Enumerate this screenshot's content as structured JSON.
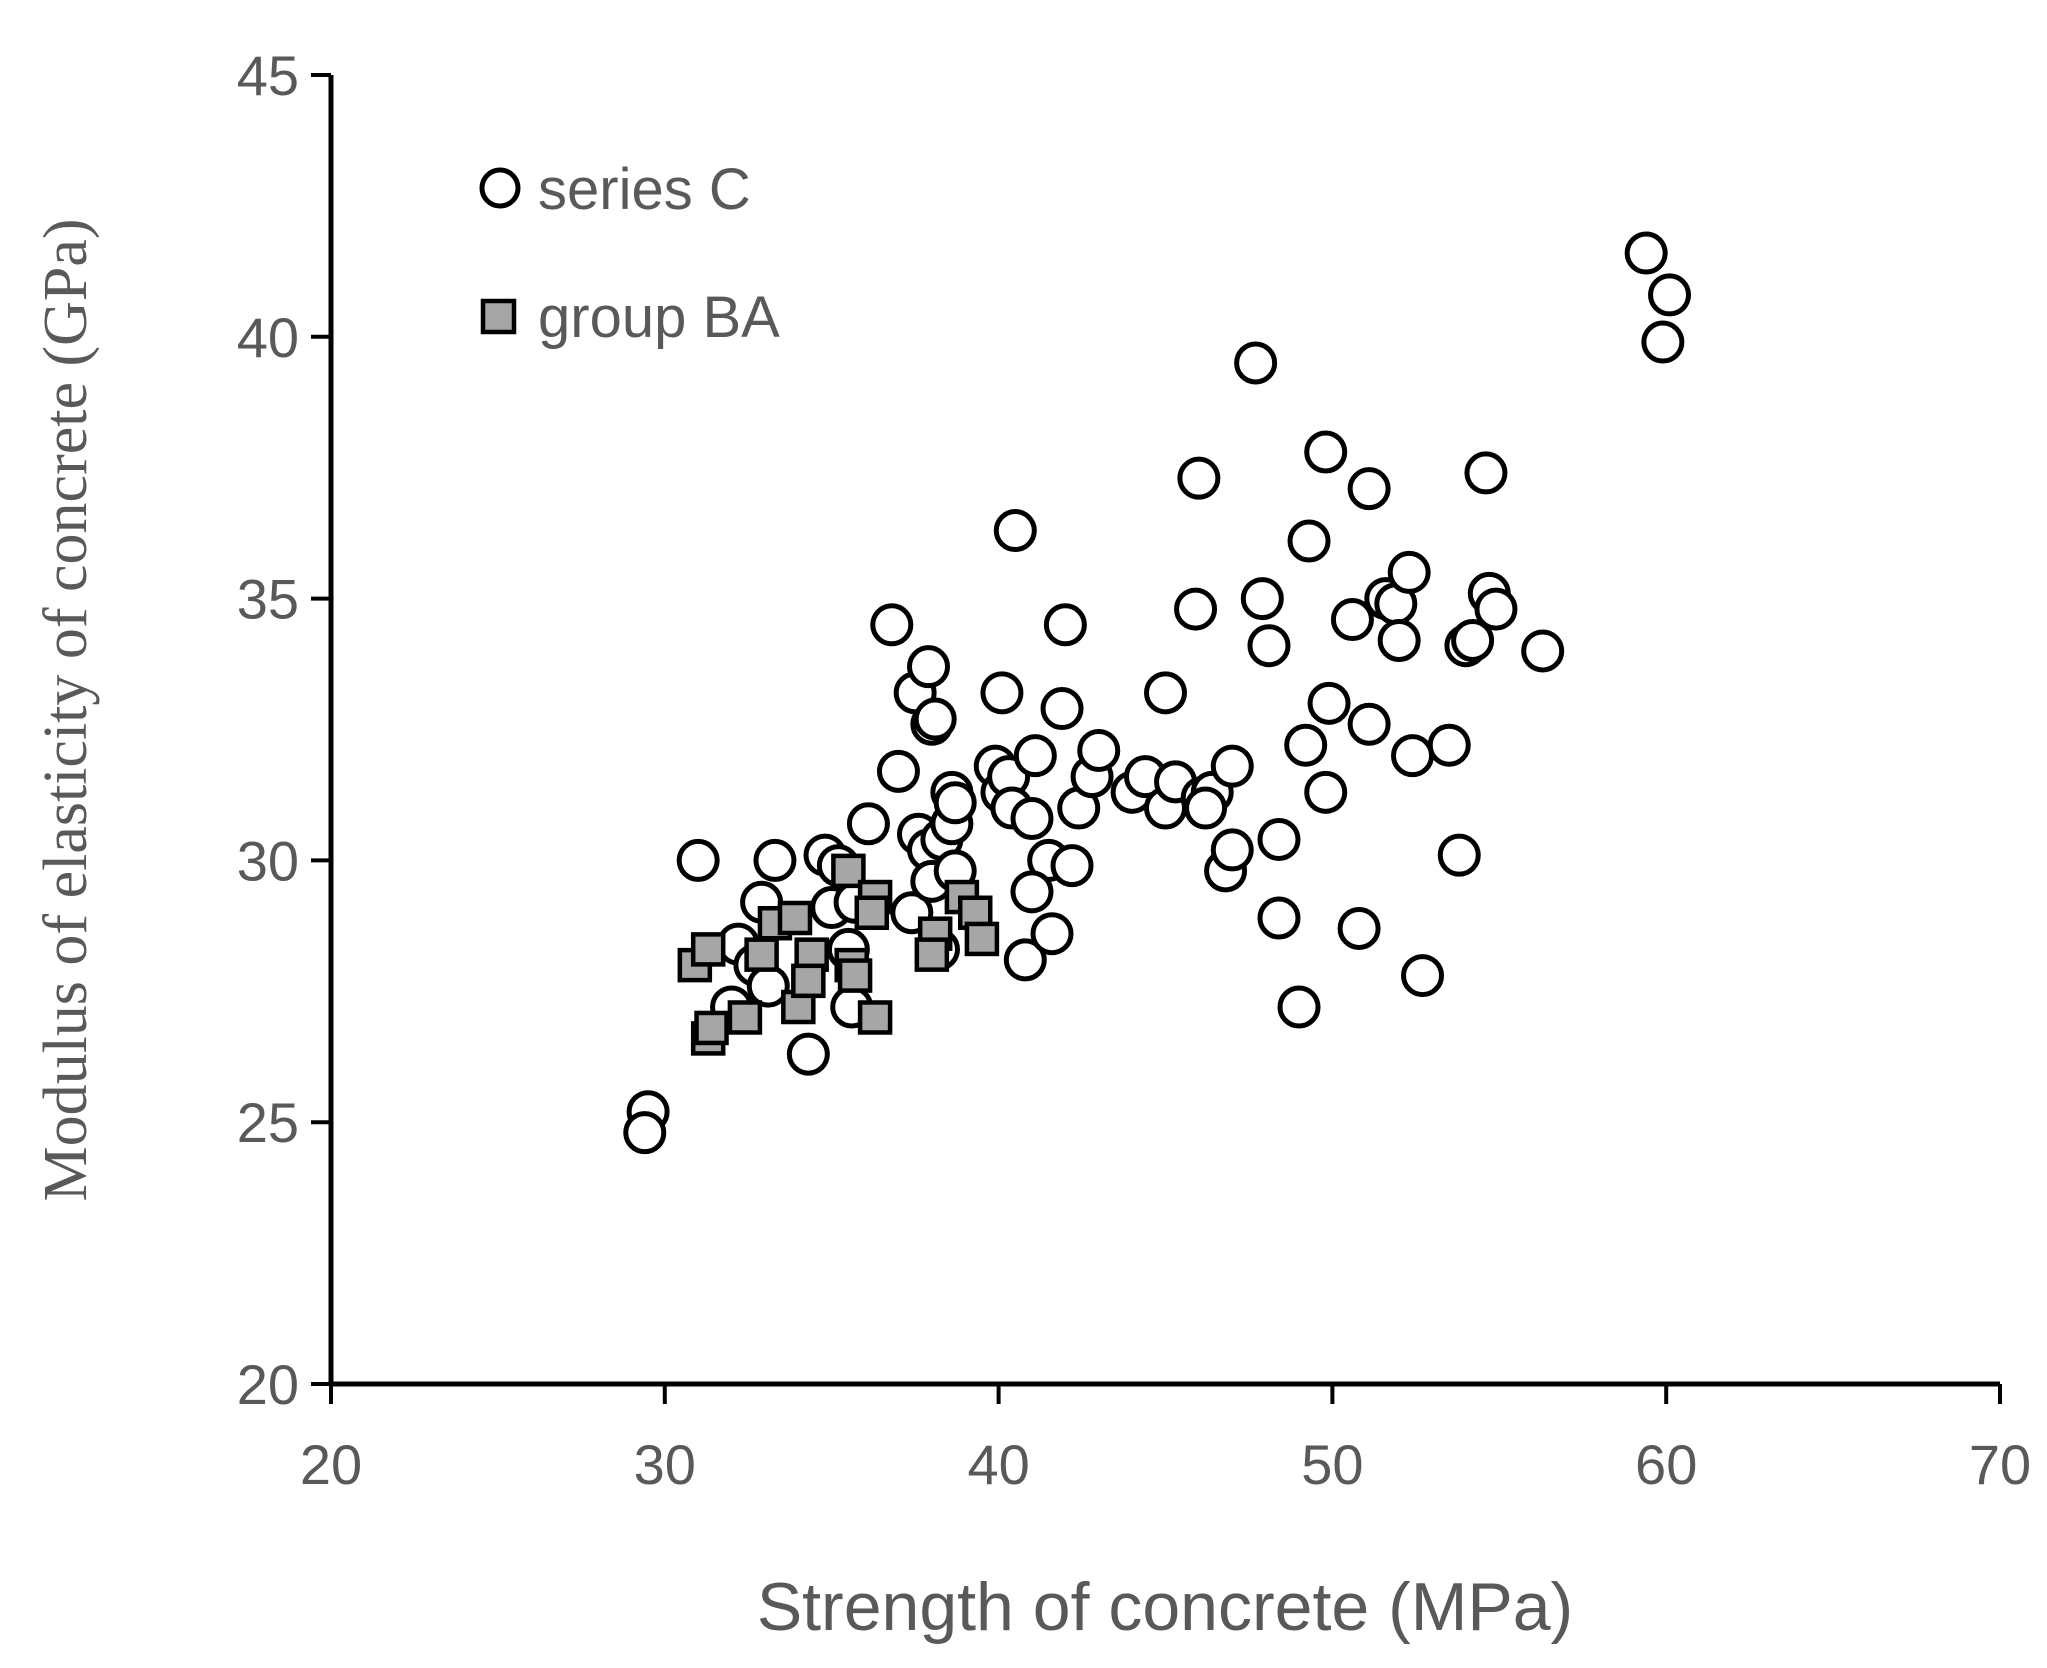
{
  "chart_data": {
    "type": "scatter",
    "title": "",
    "xlabel": "Strength of concrete (MPa)",
    "ylabel": "Modulus of elasticity of concrete (GPa)",
    "xlim": [
      20,
      70
    ],
    "ylim": [
      20,
      45
    ],
    "xticks": [
      "20",
      "30",
      "40",
      "50",
      "60",
      "70"
    ],
    "yticks": [
      "20",
      "25",
      "30",
      "35",
      "40",
      "45"
    ],
    "grid": false,
    "legend_position": "top-left",
    "series": [
      {
        "name": "series C",
        "marker": "circle",
        "fill": "#ffffff",
        "points": [
          [
            29.5,
            25.2
          ],
          [
            29.4,
            24.8
          ],
          [
            31.0,
            30.0
          ],
          [
            33.3,
            30.0
          ],
          [
            32.9,
            29.2
          ],
          [
            32.2,
            28.4
          ],
          [
            32.7,
            28.0
          ],
          [
            32.0,
            27.2
          ],
          [
            33.1,
            27.6
          ],
          [
            34.8,
            30.1
          ],
          [
            35.2,
            29.9
          ],
          [
            35.0,
            29.1
          ],
          [
            35.7,
            29.2
          ],
          [
            34.3,
            26.3
          ],
          [
            35.6,
            27.2
          ],
          [
            35.5,
            28.3
          ],
          [
            36.1,
            30.7
          ],
          [
            36.8,
            34.5
          ],
          [
            37.0,
            31.7
          ],
          [
            37.5,
            33.2
          ],
          [
            37.9,
            33.7
          ],
          [
            38.0,
            32.6
          ],
          [
            38.1,
            32.7
          ],
          [
            37.6,
            30.5
          ],
          [
            37.9,
            30.2
          ],
          [
            38.3,
            30.4
          ],
          [
            38.6,
            30.7
          ],
          [
            38.6,
            31.3
          ],
          [
            38.7,
            31.1
          ],
          [
            37.4,
            29.0
          ],
          [
            38.0,
            29.6
          ],
          [
            38.7,
            29.8
          ],
          [
            38.2,
            28.3
          ],
          [
            39.9,
            31.8
          ],
          [
            40.1,
            31.3
          ],
          [
            40.3,
            31.6
          ],
          [
            40.4,
            31.0
          ],
          [
            40.1,
            33.2
          ],
          [
            40.5,
            36.3
          ],
          [
            41.1,
            32.0
          ],
          [
            41.0,
            30.8
          ],
          [
            41.5,
            30.0
          ],
          [
            40.8,
            28.1
          ],
          [
            41.6,
            28.6
          ],
          [
            41.0,
            29.4
          ],
          [
            42.0,
            34.5
          ],
          [
            41.9,
            32.9
          ],
          [
            42.4,
            31.0
          ],
          [
            42.2,
            29.9
          ],
          [
            42.8,
            31.6
          ],
          [
            43.0,
            32.1
          ],
          [
            44.0,
            31.3
          ],
          [
            44.4,
            31.6
          ],
          [
            45.0,
            31.0
          ],
          [
            45.3,
            31.5
          ],
          [
            45.0,
            33.2
          ],
          [
            45.9,
            34.8
          ],
          [
            46.0,
            37.3
          ],
          [
            46.1,
            31.2
          ],
          [
            46.4,
            31.3
          ],
          [
            46.2,
            31.0
          ],
          [
            46.8,
            29.8
          ],
          [
            47.0,
            30.2
          ],
          [
            47.0,
            31.8
          ],
          [
            47.7,
            39.5
          ],
          [
            47.9,
            35.0
          ],
          [
            48.1,
            34.1
          ],
          [
            48.4,
            30.4
          ],
          [
            48.4,
            28.9
          ],
          [
            49.0,
            27.2
          ],
          [
            49.2,
            32.2
          ],
          [
            49.3,
            36.1
          ],
          [
            49.8,
            37.8
          ],
          [
            49.9,
            33.0
          ],
          [
            49.8,
            31.3
          ],
          [
            50.6,
            34.6
          ],
          [
            50.8,
            28.7
          ],
          [
            51.1,
            32.6
          ],
          [
            51.1,
            37.1
          ],
          [
            51.6,
            35.0
          ],
          [
            51.9,
            34.9
          ],
          [
            52.0,
            34.2
          ],
          [
            52.3,
            35.5
          ],
          [
            52.4,
            32.0
          ],
          [
            52.7,
            27.8
          ],
          [
            53.5,
            32.2
          ],
          [
            53.8,
            30.1
          ],
          [
            54.0,
            34.1
          ],
          [
            54.2,
            34.2
          ],
          [
            54.6,
            37.4
          ],
          [
            54.7,
            35.1
          ],
          [
            54.9,
            34.8
          ],
          [
            56.3,
            34.0
          ],
          [
            59.4,
            41.6
          ],
          [
            60.1,
            40.8
          ],
          [
            59.9,
            39.9
          ]
        ]
      },
      {
        "name": "group BA",
        "marker": "square",
        "fill": "#a6a6a6",
        "points": [
          [
            30.9,
            28.0
          ],
          [
            31.3,
            28.3
          ],
          [
            31.3,
            26.6
          ],
          [
            31.4,
            26.8
          ],
          [
            32.4,
            27.0
          ],
          [
            32.9,
            28.2
          ],
          [
            33.3,
            28.8
          ],
          [
            33.9,
            28.9
          ],
          [
            34.0,
            27.2
          ],
          [
            34.4,
            28.2
          ],
          [
            34.3,
            27.7
          ],
          [
            35.5,
            29.8
          ],
          [
            35.6,
            28.0
          ],
          [
            35.7,
            27.8
          ],
          [
            36.3,
            29.3
          ],
          [
            36.2,
            29.0
          ],
          [
            36.3,
            27.0
          ],
          [
            38.1,
            28.6
          ],
          [
            38.0,
            28.2
          ],
          [
            38.9,
            29.3
          ],
          [
            39.3,
            29.0
          ],
          [
            39.5,
            28.5
          ]
        ]
      }
    ]
  }
}
